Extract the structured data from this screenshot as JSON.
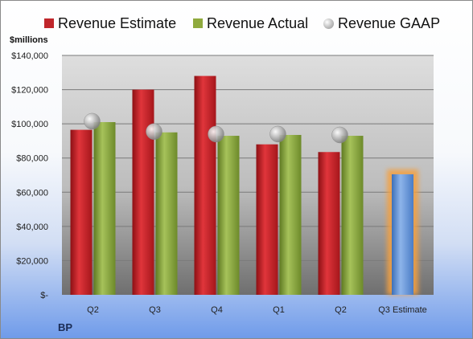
{
  "legend": {
    "estimate": "Revenue Estimate",
    "actual": "Revenue Actual",
    "gaap": "Revenue GAAP"
  },
  "units_label": "$millions",
  "company": "BP",
  "colors": {
    "estimate": "#c0262b",
    "actual": "#8faa3e",
    "gaap": "#b8b8b8",
    "forecast": "#5b8fd6",
    "forecast_glow": "#f5a040"
  },
  "chart_data": {
    "type": "bar",
    "categories": [
      "Q2",
      "Q3",
      "Q4",
      "Q1",
      "Q2",
      "Q3 Estimate"
    ],
    "series": [
      {
        "name": "Revenue Estimate",
        "values": [
          96500,
          120000,
          128000,
          88000,
          83500,
          70500
        ]
      },
      {
        "name": "Revenue Actual",
        "values": [
          101000,
          95000,
          93000,
          93500,
          93000,
          null
        ]
      },
      {
        "name": "Revenue GAAP",
        "type": "scatter",
        "values": [
          101500,
          95500,
          94000,
          94000,
          93500,
          null
        ]
      }
    ],
    "ylim": [
      0,
      140000
    ],
    "yticks": [
      "$-",
      "$20,000",
      "$40,000",
      "$60,000",
      "$80,000",
      "$100,000",
      "$120,000",
      "$140,000"
    ],
    "grid": true,
    "legend_position": "top"
  }
}
